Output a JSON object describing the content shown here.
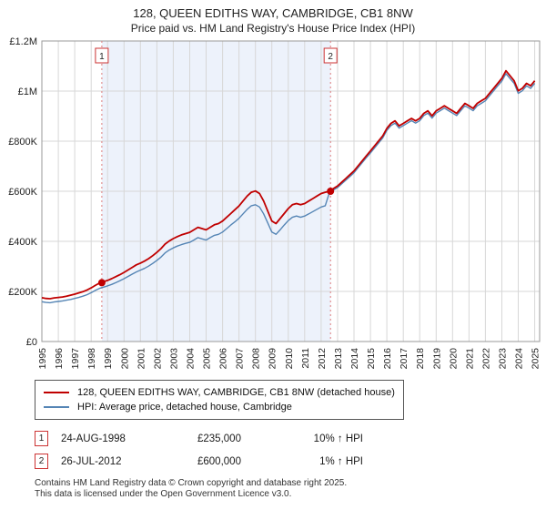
{
  "header": {
    "title": "128, QUEEN EDITHS WAY, CAMBRIDGE, CB1 8NW",
    "subtitle": "Price paid vs. HM Land Registry's House Price Index (HPI)"
  },
  "chart_data": {
    "type": "line",
    "x_start": 1995,
    "x_step": 0.25,
    "x_range": [
      1995,
      2025.3
    ],
    "y_range": [
      0,
      1200
    ],
    "values_unit": "GBP thousands",
    "grid": true,
    "legend_position": "below",
    "x_ticks": [
      1995,
      1996,
      1997,
      1998,
      1999,
      2000,
      2001,
      2002,
      2003,
      2004,
      2005,
      2006,
      2007,
      2008,
      2009,
      2010,
      2011,
      2012,
      2013,
      2014,
      2015,
      2016,
      2017,
      2018,
      2019,
      2020,
      2021,
      2022,
      2023,
      2024,
      2025
    ],
    "y_ticks": [
      {
        "v": 0,
        "label": "£0"
      },
      {
        "v": 200,
        "label": "£200K"
      },
      {
        "v": 400,
        "label": "£400K"
      },
      {
        "v": 600,
        "label": "£600K"
      },
      {
        "v": 800,
        "label": "£800K"
      },
      {
        "v": 1000,
        "label": "£1M"
      },
      {
        "v": 1200,
        "label": "£1.2M"
      }
    ],
    "shaded_region": [
      1998.65,
      2012.57
    ],
    "shade_color": "#edf2fb",
    "series": [
      {
        "name": "128, QUEEN EDITHS WAY, CAMBRIDGE, CB1 8NW (detached house)",
        "color": "#c00000",
        "values": [
          175,
          172,
          171,
          174,
          176,
          178,
          181,
          185,
          189,
          194,
          199,
          206,
          214,
          224,
          233,
          239,
          244,
          251,
          259,
          267,
          276,
          286,
          296,
          306,
          313,
          321,
          331,
          343,
          356,
          371,
          389,
          401,
          411,
          419,
          426,
          431,
          436,
          446,
          456,
          451,
          446,
          456,
          466,
          471,
          481,
          496,
          511,
          526,
          541,
          561,
          581,
          596,
          601,
          591,
          561,
          521,
          481,
          471,
          491,
          511,
          531,
          546,
          551,
          546,
          551,
          561,
          571,
          581,
          591,
          596,
          600,
          611,
          621,
          636,
          651,
          666,
          681,
          701,
          721,
          741,
          761,
          781,
          801,
          821,
          851,
          871,
          881,
          861,
          871,
          881,
          891,
          881,
          891,
          911,
          921,
          901,
          921,
          931,
          941,
          931,
          921,
          911,
          931,
          951,
          941,
          931,
          951,
          961,
          971,
          991,
          1011,
          1031,
          1051,
          1081,
          1061,
          1041,
          1001,
          1011,
          1031,
          1021,
          1041
        ]
      },
      {
        "name": "HPI: Average price, detached house, Cambridge",
        "color": "#5585b5",
        "values": [
          159,
          156,
          155,
          158,
          160,
          162,
          165,
          168,
          172,
          176,
          181,
          187,
          195,
          204,
          212,
          217,
          222,
          228,
          235,
          243,
          251,
          260,
          269,
          278,
          285,
          292,
          301,
          312,
          324,
          337,
          354,
          365,
          374,
          381,
          387,
          392,
          396,
          405,
          415,
          410,
          405,
          415,
          424,
          428,
          437,
          451,
          465,
          478,
          492,
          510,
          528,
          542,
          546,
          537,
          510,
          474,
          437,
          428,
          446,
          465,
          483,
          496,
          501,
          496,
          501,
          510,
          519,
          528,
          537,
          542,
          594,
          605,
          615,
          630,
          644,
          659,
          674,
          694,
          714,
          734,
          753,
          773,
          793,
          813,
          843,
          862,
          872,
          852,
          862,
          872,
          882,
          872,
          882,
          902,
          912,
          892,
          912,
          922,
          932,
          922,
          912,
          902,
          922,
          941,
          932,
          922,
          941,
          951,
          961,
          981,
          1001,
          1021,
          1040,
          1070,
          1050,
          1031,
          991,
          1001,
          1021,
          1011,
          1031
        ]
      }
    ],
    "sales": [
      {
        "n": "1",
        "x": 1998.65,
        "y": 235
      },
      {
        "n": "2",
        "x": 2012.57,
        "y": 600
      }
    ]
  },
  "legend": {
    "items": [
      {
        "label": "128, QUEEN EDITHS WAY, CAMBRIDGE, CB1 8NW (detached house)"
      },
      {
        "label": "HPI: Average price, detached house, Cambridge"
      }
    ]
  },
  "sales_table": [
    {
      "n": "1",
      "date": "24-AUG-1998",
      "price": "£235,000",
      "hpi": "10% ↑ HPI"
    },
    {
      "n": "2",
      "date": "26-JUL-2012",
      "price": "£600,000",
      "hpi": "1% ↑ HPI"
    }
  ],
  "footer": {
    "line1": "Contains HM Land Registry data © Crown copyright and database right 2025.",
    "line2": "This data is licensed under the Open Government Licence v3.0."
  }
}
